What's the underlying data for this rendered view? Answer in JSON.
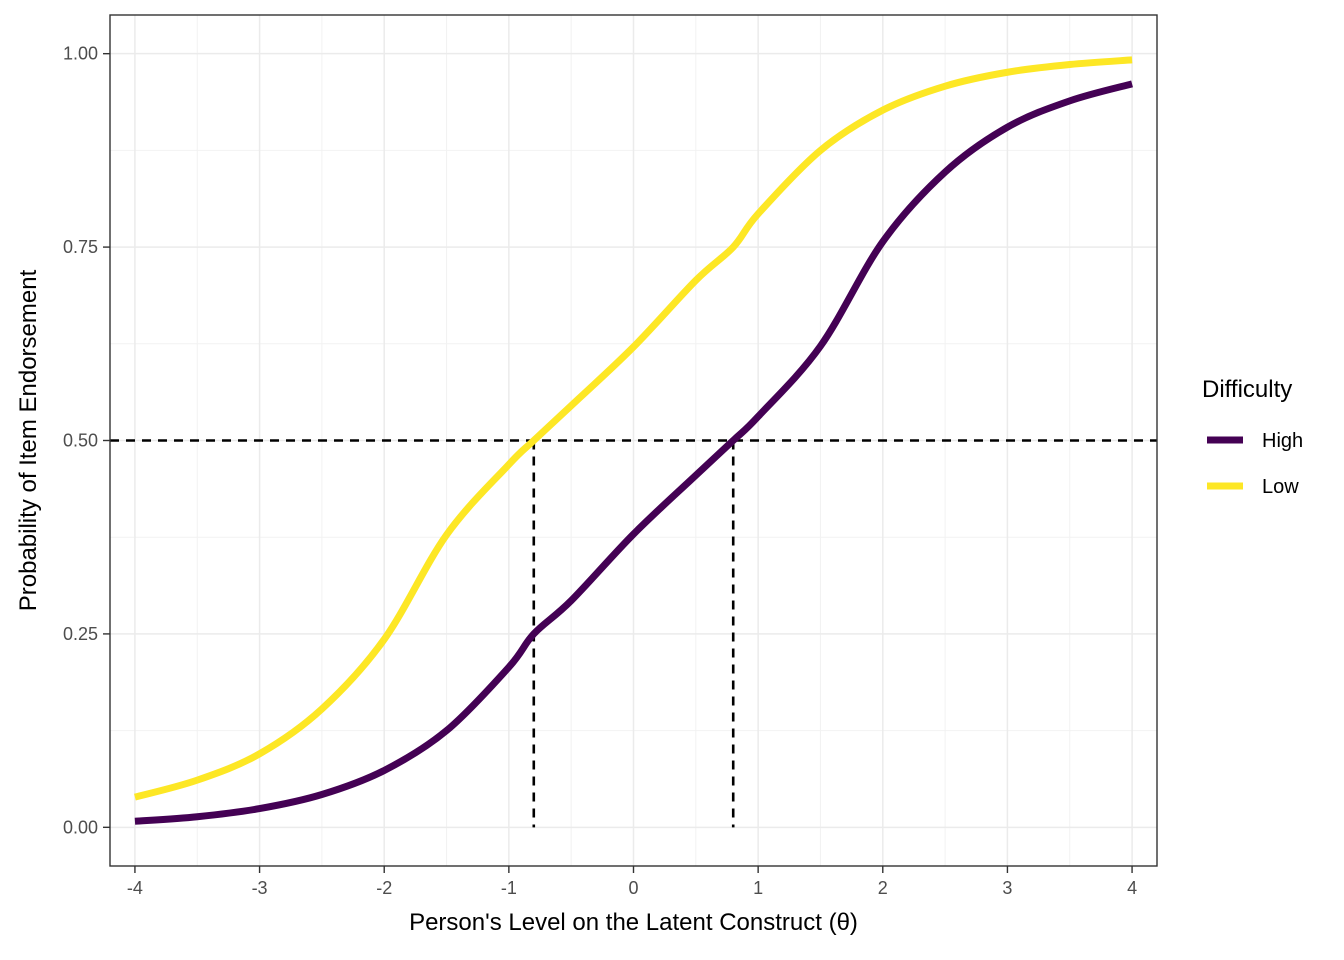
{
  "chart_data": {
    "type": "line",
    "xlabel": "Person's Level on the Latent Construct (θ)",
    "ylabel": "Probability of Item Endorsement",
    "xlim": [
      -4.2,
      4.2
    ],
    "ylim": [
      -0.05,
      1.05
    ],
    "x_ticks": [
      -4,
      -3,
      -2,
      -1,
      0,
      1,
      2,
      3,
      4
    ],
    "x_tick_labels": [
      "-4",
      "-3",
      "-2",
      "-1",
      "0",
      "1",
      "2",
      "3",
      "4"
    ],
    "y_ticks": [
      0,
      0.25,
      0.5,
      0.75,
      1
    ],
    "y_tick_labels": [
      "0.00",
      "0.25",
      "0.50",
      "0.75",
      "1.00"
    ],
    "grid": true,
    "legend": {
      "title": "Difficulty",
      "position": "right"
    },
    "series": [
      {
        "name": "High",
        "color": "#440154",
        "x": [
          -4,
          -3.5,
          -3,
          -2.5,
          -2,
          -1.5,
          -1,
          -0.8,
          -0.5,
          0,
          0.5,
          0.8,
          1,
          1.5,
          2,
          2.5,
          3,
          3.5,
          4
        ],
        "y": [
          0.0078,
          0.0137,
          0.0242,
          0.0424,
          0.0735,
          0.125,
          0.207,
          0.25,
          0.293,
          0.379,
          0.455,
          0.5,
          0.531,
          0.622,
          0.757,
          0.847,
          0.905,
          0.939,
          0.961
        ]
      },
      {
        "name": "Low",
        "color": "#fde725",
        "x": [
          -4,
          -3.5,
          -3,
          -2.5,
          -2,
          -1.5,
          -1,
          -0.8,
          -0.5,
          0,
          0.5,
          0.8,
          1,
          1.5,
          2,
          2.5,
          3,
          3.5,
          4
        ],
        "y": [
          0.039,
          0.061,
          0.095,
          0.153,
          0.243,
          0.378,
          0.469,
          0.5,
          0.545,
          0.621,
          0.707,
          0.75,
          0.793,
          0.875,
          0.927,
          0.958,
          0.976,
          0.986,
          0.992
        ]
      }
    ],
    "reference_lines": {
      "horizontal": [
        {
          "y": 0.5,
          "style": "dashed",
          "color": "#000000"
        }
      ],
      "vertical": [
        {
          "x": -0.8,
          "y_from": 0,
          "y_to": 0.5,
          "style": "dashed",
          "color": "#000000"
        },
        {
          "x": 0.8,
          "y_from": 0,
          "y_to": 0.5,
          "style": "dashed",
          "color": "#000000"
        }
      ]
    }
  }
}
